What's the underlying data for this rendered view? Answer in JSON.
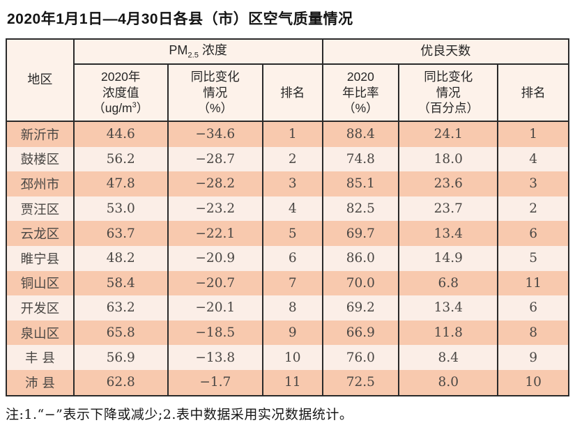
{
  "title": "2020年1月1日—4月30日各县（市）区空气质量情况",
  "note": "注:1.“−”表示下降或减少;2.表中数据采用实况数据统计。",
  "colors": {
    "band_dark": "#f8c9ae",
    "band_light": "#fbeee7",
    "header_bg": "#fdf2ea",
    "table_border": "#2a2a2a"
  },
  "table": {
    "header": {
      "region": "地区",
      "pm_group": {
        "prefix": "PM",
        "sub": "2.5",
        "suffix": " 浓度"
      },
      "pm_value": {
        "line1": "2020年",
        "line2": "浓度值",
        "line3_pre": "（ug/m",
        "line3_sup": "3",
        "line3_post": "）"
      },
      "pm_change": {
        "line1": "同比变化",
        "line2": "情况",
        "line3": "（%）"
      },
      "pm_rank": "排名",
      "good_group": "优良天数",
      "good_rate": {
        "line1": "2020",
        "line2": "年比率",
        "line3": "（%）"
      },
      "good_change": {
        "line1": "同比变化",
        "line2": "情况",
        "line3": "（百分点）"
      },
      "good_rank": "排名"
    },
    "rows": [
      {
        "region": "新沂市",
        "pm_value": "44.6",
        "pm_change": "−34.6",
        "pm_rank": "1",
        "rate": "88.4",
        "rate_change": "24.1",
        "rank": "1"
      },
      {
        "region": "鼓楼区",
        "pm_value": "56.2",
        "pm_change": "−28.7",
        "pm_rank": "2",
        "rate": "74.8",
        "rate_change": "18.0",
        "rank": "4"
      },
      {
        "region": "邳州市",
        "pm_value": "47.8",
        "pm_change": "−28.2",
        "pm_rank": "3",
        "rate": "85.1",
        "rate_change": "23.6",
        "rank": "3"
      },
      {
        "region": "贾汪区",
        "pm_value": "53.0",
        "pm_change": "−23.2",
        "pm_rank": "4",
        "rate": "82.5",
        "rate_change": "23.7",
        "rank": "2"
      },
      {
        "region": "云龙区",
        "pm_value": "63.7",
        "pm_change": "−22.1",
        "pm_rank": "5",
        "rate": "69.7",
        "rate_change": "13.4",
        "rank": "6"
      },
      {
        "region": "睢宁县",
        "pm_value": "48.2",
        "pm_change": "−20.9",
        "pm_rank": "6",
        "rate": "86.0",
        "rate_change": "14.9",
        "rank": "5"
      },
      {
        "region": "铜山区",
        "pm_value": "58.4",
        "pm_change": "−20.7",
        "pm_rank": "7",
        "rate": "70.0",
        "rate_change": "6.8",
        "rank": "11"
      },
      {
        "region": "开发区",
        "pm_value": "63.2",
        "pm_change": "−20.1",
        "pm_rank": "8",
        "rate": "69.2",
        "rate_change": "13.4",
        "rank": "6"
      },
      {
        "region": "泉山区",
        "pm_value": "65.8",
        "pm_change": "−18.5",
        "pm_rank": "9",
        "rate": "66.9",
        "rate_change": "11.8",
        "rank": "8"
      },
      {
        "region": "丰 县",
        "pm_value": "56.9",
        "pm_change": "−13.8",
        "pm_rank": "10",
        "rate": "76.0",
        "rate_change": "8.4",
        "rank": "9"
      },
      {
        "region": "沛 县",
        "pm_value": "62.8",
        "pm_change": "−1.7",
        "pm_rank": "11",
        "rate": "72.5",
        "rate_change": "8.0",
        "rank": "10"
      }
    ]
  }
}
